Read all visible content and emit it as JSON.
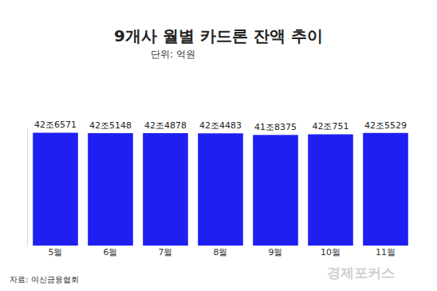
{
  "chart_data": {
    "type": "bar",
    "title": "9개사 월별 카드론 잔액 추이",
    "subtitle": "단위: 억원",
    "source": "자료: 여신금융협회",
    "watermark": "경제포커스",
    "categories": [
      "5월",
      "6월",
      "7월",
      "8월",
      "9월",
      "10월",
      "11월"
    ],
    "values": [
      426571,
      425148,
      424878,
      424483,
      418375,
      420751,
      425529
    ],
    "value_labels": [
      "42조6571",
      "42조5148",
      "42조4878",
      "42조4483",
      "41조8375",
      "42조751",
      "42조5529"
    ],
    "data_labels": true,
    "color": "#1f1ff2",
    "ylim": [
      0,
      440000
    ],
    "yticks": [
      0
    ],
    "tick_labels": "x",
    "grid": false
  }
}
